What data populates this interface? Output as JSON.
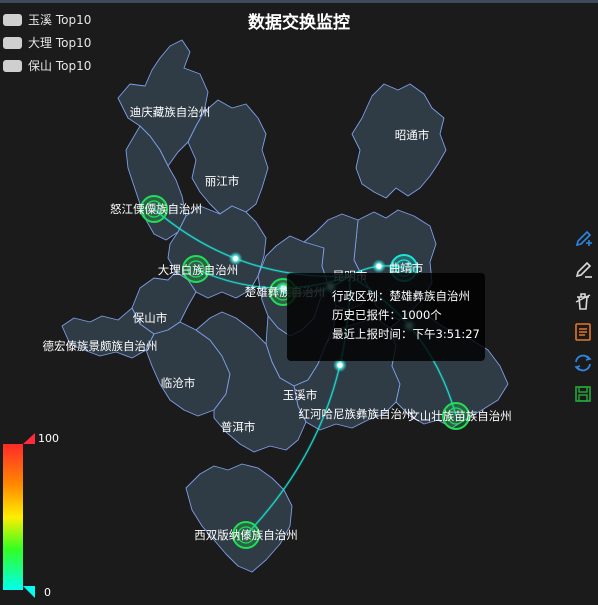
{
  "title": "数据交换监控",
  "legend": [
    {
      "label": "玉溪 Top10"
    },
    {
      "label": "大理 Top10"
    },
    {
      "label": "保山 Top10"
    }
  ],
  "regions": [
    {
      "key": "diqing",
      "name": "迪庆藏族自治州"
    },
    {
      "key": "lijiang",
      "name": "丽江市"
    },
    {
      "key": "nujiang",
      "name": "怒江傈僳族自治州"
    },
    {
      "key": "zhaotong",
      "name": "昭通市"
    },
    {
      "key": "dali",
      "name": "大理白族自治州"
    },
    {
      "key": "qujing",
      "name": "曲靖市"
    },
    {
      "key": "chuxiong",
      "name": "楚雄彝族自治州"
    },
    {
      "key": "kunming",
      "name": "昆明市"
    },
    {
      "key": "baoshan",
      "name": "保山市"
    },
    {
      "key": "dehong",
      "name": "德宏傣族景颇族自治州"
    },
    {
      "key": "lincang",
      "name": "临沧市"
    },
    {
      "key": "yuxi",
      "name": "玉溪市"
    },
    {
      "key": "honghe",
      "name": "红河哈尼族彝族自治州"
    },
    {
      "key": "wenshan",
      "name": "文山壮族苗族自治州"
    },
    {
      "key": "puer",
      "name": "普洱市"
    },
    {
      "key": "xishuangbanna",
      "name": "西双版纳傣族自治州"
    }
  ],
  "highlighted_regions": [
    "nujiang",
    "dali",
    "chuxiong",
    "qujing",
    "wenshan",
    "xishuangbanna"
  ],
  "flow_lines": [
    {
      "from": "nujiang",
      "to": "kunming"
    },
    {
      "from": "dali",
      "to": "kunming"
    },
    {
      "from": "chuxiong",
      "to": "kunming"
    },
    {
      "from": "qujing",
      "to": "kunming"
    },
    {
      "from": "wenshan",
      "to": "kunming"
    },
    {
      "from": "xishuangbanna",
      "to": "kunming"
    }
  ],
  "tooltip": {
    "line1": "行政区划：楚雄彝族自治州",
    "line2": "历史已报件：1000个",
    "line3": "最近上报时间：下午3:51:27"
  },
  "visual_map": {
    "max_label": "100",
    "min_label": "0",
    "min": 0,
    "max": 100
  },
  "toolbox": [
    {
      "name": "brush-pen-icon"
    },
    {
      "name": "brush-pencil-icon"
    },
    {
      "name": "brush-clear-icon"
    },
    {
      "name": "data-view-icon"
    },
    {
      "name": "restore-icon"
    },
    {
      "name": "save-image-icon"
    }
  ],
  "colors": {
    "background": "#1b1b1c",
    "region_fill": "#2f3b45",
    "region_border": "#7f9fe8",
    "flow_line": "#19e5d6",
    "marker": "#22dd55",
    "toolbox_blue": "#2d86e0",
    "toolbox_orange": "#e3762b",
    "toolbox_green": "#22aa3a"
  }
}
